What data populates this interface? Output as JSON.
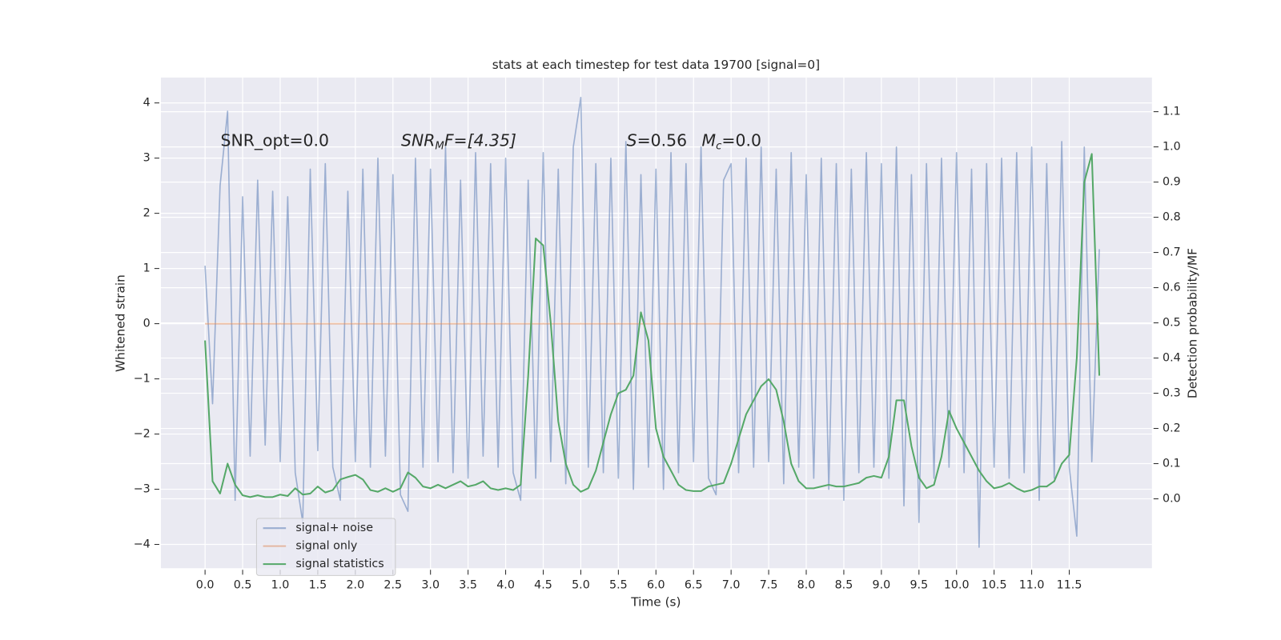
{
  "chart_data": {
    "type": "line",
    "title": "stats at each timestep for test data 19700 [signal=0]",
    "xlabel": "Time (s)",
    "ylabel": "Whitened strain",
    "y2label": "Detection probability/MF",
    "annotations": [
      {
        "main": "SNR_opt=0.0"
      },
      {
        "main": "SNR",
        "sub": "M",
        "tail": "F=[4.35]"
      },
      {
        "main": "S",
        "tail": "=0.56"
      },
      {
        "main": "M",
        "sub": "c",
        "tail": "=0.0"
      }
    ],
    "xlim": [
      -0.587,
      12.6
    ],
    "ylim": [
      -4.43,
      4.46
    ],
    "y2lim": [
      -0.197,
      1.197
    ],
    "xticks": [
      {
        "value": 0,
        "label": "0.0"
      },
      0.5,
      {
        "value": 1,
        "label": "1.0"
      },
      1.5,
      {
        "value": 2,
        "label": "2.0"
      },
      2.5,
      {
        "value": 3,
        "label": "3.0"
      },
      3.5,
      {
        "value": 4,
        "label": "4.0"
      },
      4.5,
      {
        "value": 5,
        "label": "5.0"
      },
      5.5,
      {
        "value": 6,
        "label": "6.0"
      },
      6.5,
      {
        "value": 7,
        "label": "7.0"
      },
      7.5,
      {
        "value": 8,
        "label": "8.0"
      },
      8.5,
      {
        "value": 9,
        "label": "9.0"
      },
      9.5,
      {
        "value": 10,
        "label": "10.0"
      },
      10.5,
      {
        "value": 11,
        "label": "11.0"
      },
      11.5
    ],
    "yticks": [
      {
        "value": -4,
        "label": "−4"
      },
      {
        "value": -3,
        "label": "−3"
      },
      {
        "value": -2,
        "label": "−2"
      },
      {
        "value": -1,
        "label": "−1"
      },
      0,
      1,
      2,
      3,
      4
    ],
    "y2ticks": [
      {
        "value": 0,
        "label": "0.0"
      },
      0.1,
      0.2,
      0.3,
      0.4,
      0.5,
      0.6,
      0.7,
      0.8,
      0.9,
      {
        "value": 1,
        "label": "1.0"
      },
      1.1
    ],
    "grid": true,
    "legend": "lower left",
    "x": [
      0,
      0.1,
      0.2,
      0.3,
      0.4,
      0.5,
      0.6,
      0.7,
      0.8,
      0.9,
      1,
      1.1,
      1.2,
      1.3,
      1.4,
      1.5,
      1.6,
      1.7,
      1.8,
      1.9,
      2,
      2.1,
      2.2,
      2.3,
      2.4,
      2.5,
      2.6,
      2.7,
      2.8,
      2.9,
      3,
      3.1,
      3.2,
      3.3,
      3.4,
      3.5,
      3.6,
      3.7,
      3.8,
      3.9,
      4,
      4.1,
      4.2,
      4.3,
      4.4,
      4.5,
      4.6,
      4.7,
      4.8,
      4.9,
      5,
      5.1,
      5.2,
      5.3,
      5.4,
      5.5,
      5.6,
      5.7,
      5.8,
      5.9,
      6,
      6.1,
      6.2,
      6.3,
      6.4,
      6.5,
      6.6,
      6.7,
      6.8,
      6.9,
      7,
      7.1,
      7.2,
      7.3,
      7.4,
      7.5,
      7.6,
      7.7,
      7.8,
      7.9,
      8,
      8.1,
      8.2,
      8.3,
      8.4,
      8.5,
      8.6,
      8.7,
      8.8,
      8.9,
      9,
      9.1,
      9.2,
      9.3,
      9.4,
      9.5,
      9.6,
      9.7,
      9.8,
      9.9,
      10,
      10.1,
      10.2,
      10.3,
      10.4,
      10.5,
      10.6,
      10.7,
      10.8,
      10.9,
      11,
      11.1,
      11.2,
      11.3,
      11.4,
      11.5,
      11.6,
      11.7,
      11.8,
      11.9
    ],
    "series": [
      {
        "name": "signal+ noise",
        "color": "#4c72b0",
        "values": [
          1.05,
          -1.45,
          2.5,
          3.85,
          -3.2,
          2.3,
          -2.4,
          2.6,
          -2.2,
          2.4,
          -2.5,
          2.3,
          -2.7,
          -3.6,
          2.8,
          -2.3,
          2.9,
          -2.6,
          -3.2,
          2.4,
          -2.5,
          2.8,
          -2.6,
          3.0,
          -2.4,
          2.7,
          -3.1,
          -3.4,
          3.0,
          -2.6,
          2.8,
          -2.5,
          3.2,
          -2.7,
          2.6,
          -2.8,
          3.1,
          -2.4,
          2.9,
          -2.6,
          3.0,
          -2.7,
          -3.2,
          2.6,
          -2.8,
          3.1,
          -2.5,
          2.8,
          -2.9,
          3.2,
          4.1,
          -2.6,
          2.9,
          -2.7,
          3.0,
          -2.8,
          3.3,
          -3.0,
          2.7,
          -2.6,
          2.8,
          -3.0,
          3.1,
          -2.7,
          2.9,
          -2.5,
          3.2,
          -2.8,
          -3.1,
          2.6,
          2.9,
          -2.7,
          3.0,
          -2.6,
          3.2,
          -2.5,
          2.8,
          -2.9,
          3.1,
          -2.6,
          2.7,
          -2.8,
          3.0,
          -3.0,
          2.9,
          -3.2,
          2.8,
          -2.7,
          3.1,
          -2.6,
          2.9,
          -2.8,
          3.2,
          -3.3,
          2.7,
          -3.6,
          2.9,
          -2.8,
          3.0,
          -2.6,
          3.1,
          -2.7,
          2.8,
          -4.05,
          2.9,
          -2.6,
          3.0,
          -2.8,
          3.1,
          -2.7,
          3.2,
          -3.2,
          2.9,
          -2.8,
          3.3,
          -2.6,
          -3.85,
          3.2,
          -2.5,
          1.35
        ]
      },
      {
        "name": "signal only",
        "color": "#dd8452",
        "x": [
          0,
          11.9
        ],
        "values": [
          0,
          0
        ]
      },
      {
        "name": "signal statistics",
        "color": "#55a868",
        "axis": "y2",
        "values": [
          0.45,
          0.05,
          0.015,
          0.1,
          0.04,
          0.01,
          0.005,
          0.01,
          0.005,
          0.005,
          0.012,
          0.008,
          0.03,
          0.012,
          0.015,
          0.035,
          0.018,
          0.025,
          0.055,
          0.062,
          0.068,
          0.055,
          0.025,
          0.02,
          0.03,
          0.02,
          0.03,
          0.075,
          0.06,
          0.035,
          0.03,
          0.04,
          0.03,
          0.04,
          0.05,
          0.035,
          0.04,
          0.05,
          0.03,
          0.025,
          0.03,
          0.025,
          0.04,
          0.35,
          0.74,
          0.72,
          0.5,
          0.22,
          0.1,
          0.04,
          0.02,
          0.03,
          0.08,
          0.16,
          0.24,
          0.3,
          0.31,
          0.35,
          0.53,
          0.45,
          0.2,
          0.12,
          0.08,
          0.04,
          0.025,
          0.022,
          0.022,
          0.035,
          0.04,
          0.045,
          0.1,
          0.17,
          0.24,
          0.28,
          0.32,
          0.34,
          0.31,
          0.22,
          0.1,
          0.05,
          0.03,
          0.03,
          0.035,
          0.04,
          0.035,
          0.035,
          0.04,
          0.045,
          0.06,
          0.065,
          0.06,
          0.12,
          0.28,
          0.28,
          0.15,
          0.06,
          0.03,
          0.04,
          0.12,
          0.25,
          0.2,
          0.16,
          0.12,
          0.08,
          0.05,
          0.03,
          0.035,
          0.045,
          0.03,
          0.02,
          0.025,
          0.035,
          0.035,
          0.05,
          0.1,
          0.125,
          0.4,
          0.9,
          0.98,
          0.35
        ]
      }
    ]
  }
}
